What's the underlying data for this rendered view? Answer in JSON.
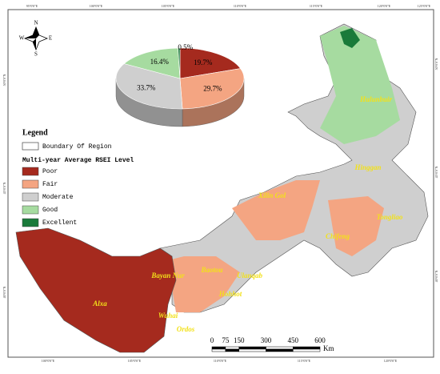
{
  "map": {
    "compass": {
      "n": "N",
      "s": "S",
      "e": "E",
      "w": "W"
    },
    "graticule": {
      "top": [
        "95°0'0\"E",
        "100°0'0\"E",
        "105°0'0\"E",
        "110°0'0\"E",
        "115°0'0\"E",
        "120°0'0\"E",
        "125°0'0\"E"
      ],
      "bottom": [
        "100°0'0\"E",
        "105°0'0\"E",
        "110°0'0\"E",
        "115°0'0\"E",
        "120°0'0\"E"
      ],
      "left": [
        "50°0'0\"N",
        "45°0'0\"N",
        "40°0'0\"N"
      ],
      "right": [
        "50°0'0\"N",
        "45°0'0\"N",
        "40°0'0\"N"
      ]
    },
    "legend": {
      "title": "Legend",
      "boundary": "Boundary Of Region",
      "subtitle": "Multi-year Average RSEI Level"
    },
    "regions": [
      "Hulunbuir",
      "Hinggan",
      "Xilin Gol",
      "Tongliao",
      "Chifeng",
      "Ulanqab",
      "Baotou",
      "Bayan Nur",
      "Hohhot",
      "Alxa",
      "Wuhai",
      "Ordos"
    ],
    "scale": {
      "ticks": [
        0,
        75,
        150,
        300,
        450,
        600
      ],
      "unit": "Km"
    }
  },
  "chart_data": {
    "type": "pie",
    "categories": [
      "Poor",
      "Fair",
      "Moderate",
      "Good",
      "Excellent"
    ],
    "values": [
      19.7,
      29.7,
      33.7,
      16.4,
      0.5
    ],
    "value_labels": [
      "19.7%",
      "29.7%",
      "33.7%",
      "16.4%",
      "0.5%"
    ],
    "colors": [
      "#a52a1e",
      "#f4a582",
      "#cfcfcf",
      "#a6dba0",
      "#1a7a3a"
    ]
  }
}
